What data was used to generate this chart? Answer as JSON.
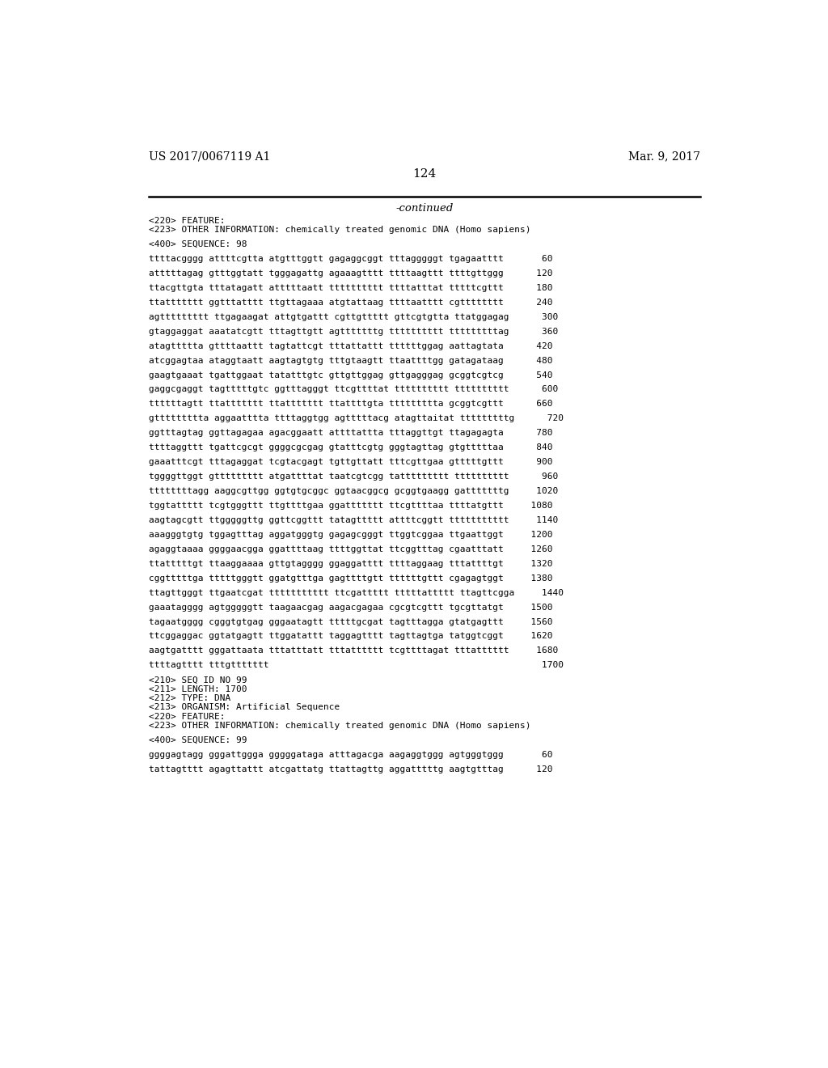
{
  "header_left": "US 2017/0067119 A1",
  "header_right": "Mar. 9, 2017",
  "page_number": "124",
  "continued_label": "-continued",
  "background_color": "#ffffff",
  "text_color": "#000000",
  "content_lines": [
    "<220> FEATURE:",
    "<223> OTHER INFORMATION: chemically treated genomic DNA (Homo sapiens)",
    "",
    "<400> SEQUENCE: 98",
    "",
    "ttttacgggg attttcgtta atgtttggtt gagaggcggt tttagggggt tgagaatttt       60",
    "",
    "atttttagag gtttggtatt tgggagattg agaaagtttt ttttaagttt ttttgttggg      120",
    "",
    "ttacgttgta tttatagatt atttttaatt tttttttttt ttttatttat tttttcgttt      180",
    "",
    "ttattttttt ggtttatttt ttgttagaaa atgtattaag ttttaatttt cgtttttttt      240",
    "",
    "agttttttttt ttgagaagat attgtgattt cgttgttttt gttcgtgtta ttatggagag      300",
    "",
    "gtaggaggat aaatatcgtt tttagttgtt agtttttttg tttttttttt tttttttttag      360",
    "",
    "atagttttta gttttaattt tagtattcgt tttattattt ttttttggag aattagtata      420",
    "",
    "atcggagtaa ataggtaatt aagtagtgtg tttgtaagtt ttaattttgg gatagataag      480",
    "",
    "gaagtgaaat tgattggaat tatatttgtc gttgttggag gttgagggag gcggtcgtcg      540",
    "",
    "gaggcgaggt tagtttttgtc ggtttagggt ttcgttttat tttttttttt tttttttttt      600",
    "",
    "ttttttagtt ttattttttt ttattttttt ttattttgta ttttttttta gcggtcgttt      660",
    "",
    "gttttttttta aggaatttta ttttaggtgg agtttttacg atagttaitat tttttttttg      720",
    "",
    "ggtttagtag ggttagagaa agacggaatt attttattta tttaggttgt ttagagagta      780",
    "",
    "ttttaggttt tgattcgcgt ggggcgcgag gtatttcgtg gggtagttag gtgtttttaa      840",
    "",
    "gaaatttcgt tttagaggat tcgtacgagt tgttgttatt tttcgttgaa gtttttgttt      900",
    "",
    "tggggttggt gttttttttt atgattttat taatcgtcgg tattttttttt tttttttttt      960",
    "",
    "ttttttttagg aaggcgttgg ggtgtgcggc ggtaacggcg gcggtgaagg gatttttttg     1020",
    "",
    "tggtattttt tcgtgggttt ttgttttgaa ggattttttt ttcgttttaa ttttatgttt     1080",
    "",
    "aagtagcgtt ttgggggttg ggttcggttt tatagttttt attttcggtt ttttttttttt     1140",
    "",
    "aaagggtgtg tggagtttag aggatgggtg gagagcgggt ttggtcggaa ttgaattggt     1200",
    "",
    "agaggtaaaa ggggaacgga ggattttaag ttttggttat ttcggtttag cgaatttatt     1260",
    "",
    "ttatttttgt ttaaggaaaa gttgtagggg ggaggatttt ttttaggaag tttattttgt     1320",
    "",
    "cggtttttga tttttgggtt ggatgtttga gagttttgtt ttttttgttt cgagagtggt     1380",
    "",
    "ttagttgggt ttgaatcgat ttttttttttt ttcgattttt tttttattttt ttagttcgga     1440",
    "",
    "gaaatagggg agtgggggtt taagaacgag aagacgagaa cgcgtcgttt tgcgttatgt     1500",
    "",
    "tagaatgggg cgggtgtgag gggaatagtt tttttgcgat tagtttagga gtatgagttt     1560",
    "",
    "ttcggaggac ggtatgagtt ttggatattt taggagtttt tagttagtga tatggtcggt     1620",
    "",
    "aagtgatttt gggattaata tttatttatt tttatttttt tcgttttagat tttatttttt     1680",
    "",
    "ttttagtttt tttgttttttt                                                  1700",
    "",
    "<210> SEQ ID NO 99",
    "<211> LENGTH: 1700",
    "<212> TYPE: DNA",
    "<213> ORGANISM: Artificial Sequence",
    "<220> FEATURE:",
    "<223> OTHER INFORMATION: chemically treated genomic DNA (Homo sapiens)",
    "",
    "<400> SEQUENCE: 99",
    "",
    "ggggagtagg gggattggga gggggataga atttagacga aagaggtggg agtgggtggg       60",
    "",
    "tattagtttt agagttattt atcgattatg ttattagttg aggatttttg aagtgtttag      120"
  ]
}
